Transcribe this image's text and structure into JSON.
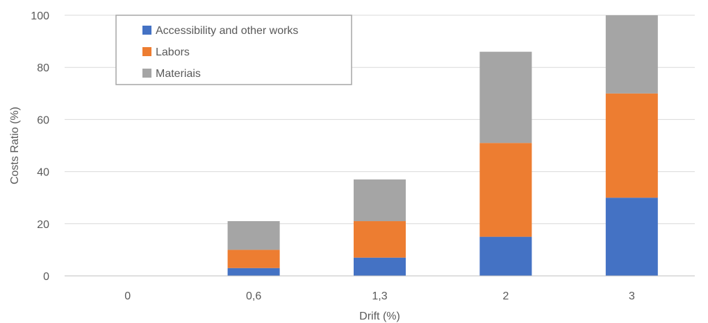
{
  "chart_data": {
    "type": "bar",
    "stacked": true,
    "categories": [
      "0",
      "0,6",
      "1,3",
      "2",
      "3"
    ],
    "series": [
      {
        "name": "Accessibility and other works",
        "color": "#4472c4",
        "values": [
          0,
          3,
          7,
          15,
          30
        ]
      },
      {
        "name": "Labors",
        "color": "#ed7d31",
        "values": [
          0,
          7,
          14,
          36,
          40
        ]
      },
      {
        "name": "Materiais",
        "color": "#a5a5a5",
        "values": [
          0,
          11,
          16,
          35,
          30
        ]
      }
    ],
    "xlabel": "Drift (%)",
    "ylabel": "Costs Ratio (%)",
    "ylim": [
      0,
      100
    ],
    "yticks": [
      "0",
      "20",
      "40",
      "60",
      "80",
      "100"
    ],
    "grid": "horizontal",
    "legend_position": "top-left"
  }
}
